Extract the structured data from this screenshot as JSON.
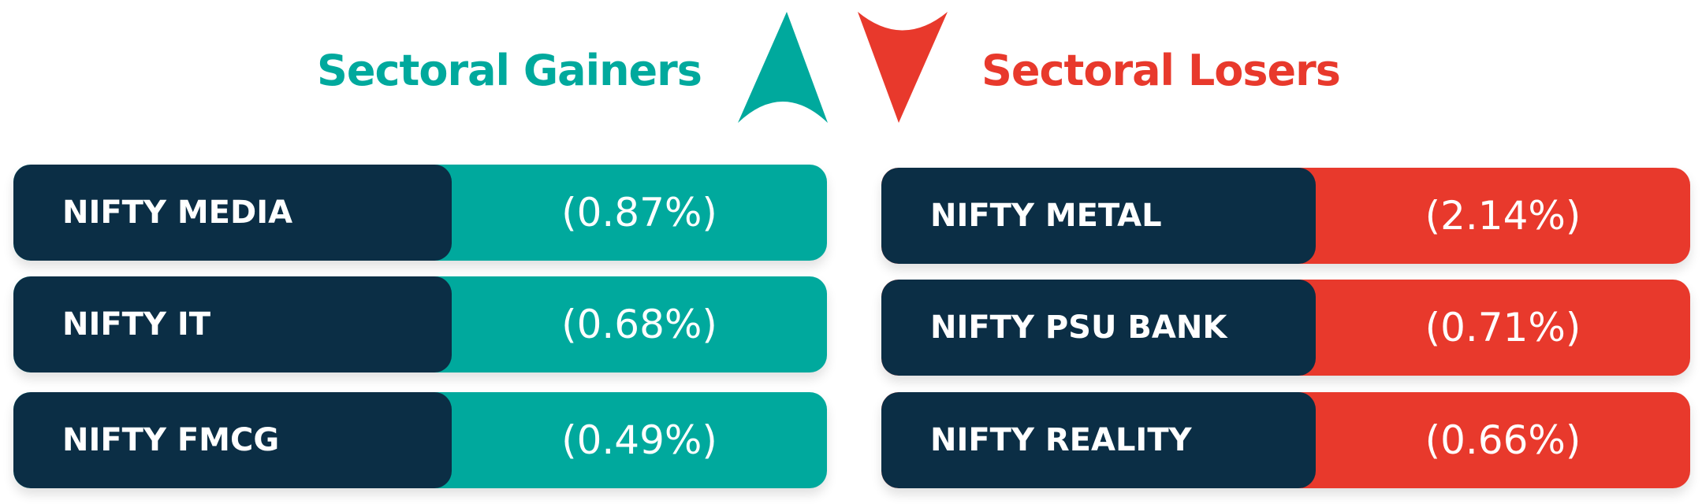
{
  "gainers": {
    "title": "Sectoral Gainers",
    "rows": [
      {
        "name": "NIFTY MEDIA",
        "value": "(0.87%)"
      },
      {
        "name": "NIFTY IT",
        "value": "(0.68%)"
      },
      {
        "name": "NIFTY FMCG",
        "value": "(0.49%)"
      }
    ]
  },
  "losers": {
    "title": "Sectoral Losers",
    "rows": [
      {
        "name": "NIFTY METAL",
        "value": "(2.14%)"
      },
      {
        "name": "NIFTY PSU BANK",
        "value": "(0.71%)"
      },
      {
        "name": "NIFTY REALITY",
        "value": "(0.66%)"
      }
    ]
  }
}
